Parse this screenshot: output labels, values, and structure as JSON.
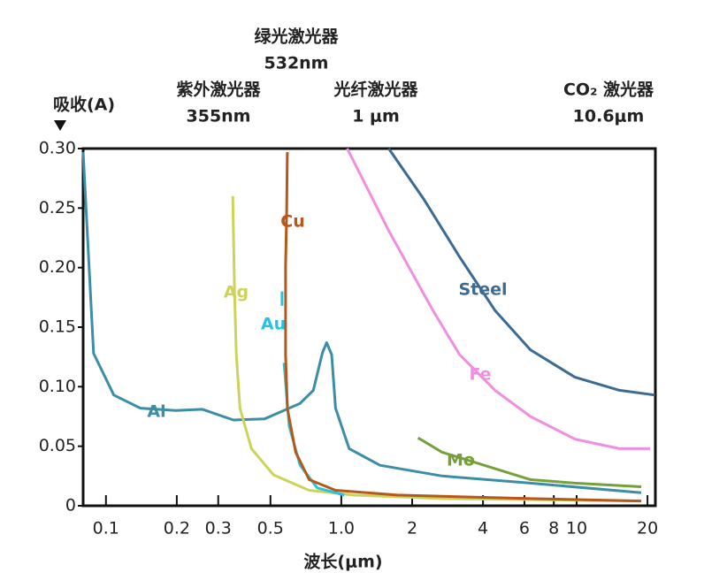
{
  "chart_data": {
    "type": "line",
    "y_label": "吸收(A)",
    "x_label": "波长(μm)",
    "annotations": [
      {
        "name": "紫外激光器",
        "wavelength": "355nm"
      },
      {
        "name": "绿光激光器",
        "wavelength": "532nm"
      },
      {
        "name": "光纤激光器",
        "wavelength": "1 μm"
      },
      {
        "name": "CO₂ 激光器",
        "wavelength": "10.6μm"
      }
    ],
    "log_x": true,
    "xlim": [
      0.08,
      21.6
    ],
    "ylim": [
      0,
      0.3
    ],
    "xticks": [
      0.1,
      0.2,
      0.3,
      0.5,
      {
        "value": 1,
        "label": "1.0"
      },
      2,
      4,
      6,
      8,
      10,
      20
    ],
    "yticks": [
      0,
      0.05,
      {
        "value": 0.1,
        "label": "0.10"
      },
      0.15,
      {
        "value": 0.2,
        "label": "0.20"
      },
      0.25,
      {
        "value": 0.3,
        "label": "0.30"
      }
    ],
    "series": [
      {
        "name": "Al",
        "color": "#3b8ea5",
        "x": [
          0.08,
          0.0886,
          0.108,
          0.14,
          0.198,
          0.257,
          0.348,
          0.472,
          0.668,
          0.761,
          0.83,
          0.866,
          0.91,
          0.945,
          1.08,
          1.46,
          2.68,
          6.36,
          18.8
        ],
        "values": [
          0.297,
          0.128,
          0.093,
          0.082,
          0.08,
          0.081,
          0.072,
          0.073,
          0.086,
          0.097,
          0.128,
          0.137,
          0.127,
          0.082,
          0.048,
          0.034,
          0.025,
          0.019,
          0.011
        ]
      },
      {
        "name": "Ag",
        "color": "#cdd35a",
        "x": [
          0.346,
          0.352,
          0.358,
          0.371,
          0.415,
          0.515,
          0.729,
          1.12,
          2.68,
          18.8
        ],
        "values": [
          0.26,
          0.179,
          0.127,
          0.082,
          0.048,
          0.026,
          0.013,
          0.009,
          0.006,
          0.004
        ]
      },
      {
        "name": "Au",
        "color": "#27c4e0",
        "x": [
          0.56,
          0.56,
          0.566,
          0.571,
          0.6,
          0.668,
          0.79,
          1.03
        ],
        "values": [
          0.18,
          0.168,
          null,
          0.12,
          0.067,
          0.034,
          0.015,
          0.009
        ]
      },
      {
        "name": "Cu",
        "color": "#b5581b",
        "x": [
          0.59,
          0.586,
          0.58,
          0.58,
          0.59,
          0.64,
          0.73,
          0.945,
          1.73,
          6.36,
          18.8
        ],
        "values": [
          0.297,
          0.246,
          0.201,
          0.127,
          0.082,
          0.045,
          0.022,
          0.013,
          0.009,
          0.006,
          0.004
        ]
      },
      {
        "name": "Steel",
        "color": "#3d6a93",
        "x": [
          1.59,
          2.25,
          3.18,
          4.5,
          6.36,
          9.84,
          15.2,
          21.5
        ],
        "values": [
          0.3,
          0.257,
          0.209,
          0.164,
          0.131,
          0.108,
          0.097,
          0.093
        ]
      },
      {
        "name": "Fe",
        "color": "#f08ee0",
        "x": [
          1.06,
          1.59,
          2.45,
          3.18,
          4.5,
          6.36,
          9.84,
          15.2,
          20.5
        ],
        "values": [
          0.3,
          0.231,
          0.164,
          0.127,
          0.097,
          0.075,
          0.056,
          0.048,
          0.048
        ]
      },
      {
        "name": "Mo",
        "color": "#76a03a",
        "x": [
          2.12,
          2.68,
          4.7,
          6.36,
          9.84,
          18.8
        ],
        "values": [
          0.057,
          0.045,
          0.03,
          0.022,
          0.019,
          0.016
        ]
      }
    ]
  }
}
